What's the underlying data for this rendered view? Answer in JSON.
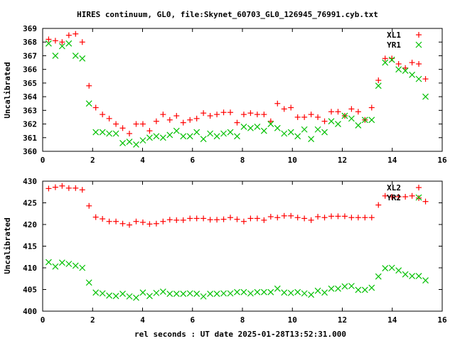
{
  "chart_data": {
    "title": "HIRES continuum, GL0, file:Skynet_60703_GL0_126945_76991.cyb.txt",
    "xlabel": "rel seconds : UT date 2025-01-28T13:52:31.000",
    "x_start": 0.24,
    "x_step": 0.2695,
    "panels": [
      {
        "type": "scatter",
        "ylabel": "Uncalibrated",
        "xlim": [
          0,
          16
        ],
        "ylim": [
          360,
          369
        ],
        "xticks": [
          "0",
          "2",
          "4",
          "6",
          "8",
          "10",
          "12",
          "14",
          "16"
        ],
        "yticks": [
          "360",
          "361",
          "362",
          "363",
          "364",
          "365",
          "366",
          "367",
          "368",
          "369"
        ],
        "legend_position": "top-right",
        "series": [
          {
            "name": "XL1",
            "color": "#ff0000",
            "marker": "plus",
            "values": [
              368.2,
              368.1,
              368.0,
              368.5,
              368.6,
              368.0,
              364.8,
              363.2,
              362.7,
              362.4,
              362.0,
              361.7,
              361.3,
              362.0,
              362.0,
              361.5,
              362.2,
              362.7,
              362.3,
              362.6,
              362.1,
              362.3,
              362.4,
              362.8,
              362.6,
              362.7,
              362.85,
              362.85,
              362.1,
              362.7,
              362.8,
              362.7,
              362.7,
              362.2,
              363.5,
              363.1,
              363.2,
              362.5,
              362.5,
              362.7,
              362.5,
              362.2,
              362.9,
              362.9,
              362.6,
              363.1,
              362.9,
              362.3,
              363.2,
              365.2,
              366.8,
              366.8,
              366.4,
              366.1,
              366.5,
              366.4,
              365.3
            ]
          },
          {
            "name": "YR1",
            "color": "#00c000",
            "marker": "cross",
            "values": [
              367.9,
              367.0,
              367.7,
              367.9,
              367.0,
              366.8,
              363.5,
              361.4,
              361.4,
              361.3,
              361.3,
              360.6,
              360.7,
              360.5,
              360.8,
              361.0,
              361.1,
              361.0,
              361.2,
              361.5,
              361.1,
              361.1,
              361.4,
              360.9,
              361.3,
              361.1,
              361.3,
              361.4,
              361.1,
              361.8,
              361.7,
              361.8,
              361.5,
              362.0,
              361.7,
              361.3,
              361.4,
              361.1,
              361.6,
              360.9,
              361.6,
              361.4,
              362.2,
              362.0,
              362.6,
              362.4,
              361.9,
              362.3,
              362.3,
              364.8,
              366.5,
              366.7,
              366.0,
              365.9,
              365.6,
              365.3,
              364.0
            ]
          }
        ]
      },
      {
        "type": "scatter",
        "ylabel": "Uncalibrated",
        "xlim": [
          0,
          16
        ],
        "ylim": [
          400,
          430
        ],
        "xticks": [
          "0",
          "2",
          "4",
          "6",
          "8",
          "10",
          "12",
          "14",
          "16"
        ],
        "yticks": [
          "400",
          "405",
          "410",
          "415",
          "420",
          "425",
          "430"
        ],
        "legend_position": "top-right",
        "series": [
          {
            "name": "XL2",
            "color": "#ff0000",
            "marker": "plus",
            "values": [
              428.3,
              428.6,
              428.9,
              428.4,
              428.4,
              428.0,
              424.3,
              421.7,
              421.3,
              420.7,
              420.7,
              420.2,
              419.9,
              420.7,
              420.5,
              420.1,
              420.2,
              420.7,
              421.1,
              421.0,
              421.0,
              421.4,
              421.4,
              421.4,
              421.1,
              421.1,
              421.2,
              421.6,
              421.2,
              420.7,
              421.4,
              421.4,
              421.0,
              421.8,
              421.6,
              422.0,
              422.0,
              421.6,
              421.4,
              421.0,
              421.8,
              421.6,
              421.9,
              421.9,
              421.9,
              421.6,
              421.6,
              421.6,
              421.6,
              424.5,
              426.6,
              426.4,
              426.4,
              426.4,
              426.6,
              426.1,
              425.3
            ]
          },
          {
            "name": "YR2",
            "color": "#00c000",
            "marker": "cross",
            "values": [
              411.3,
              410.3,
              411.2,
              410.9,
              410.5,
              410.0,
              406.6,
              404.3,
              404.1,
              403.6,
              403.5,
              404.0,
              403.4,
              403.1,
              404.3,
              403.5,
              404.2,
              404.5,
              404.0,
              404.0,
              404.0,
              404.1,
              404.0,
              403.4,
              404.0,
              404.0,
              404.1,
              404.1,
              404.4,
              404.4,
              404.1,
              404.4,
              404.4,
              404.4,
              405.2,
              404.3,
              404.2,
              404.4,
              404.1,
              403.8,
              404.7,
              404.3,
              405.2,
              405.2,
              405.7,
              405.8,
              404.9,
              404.9,
              405.4,
              408.0,
              409.9,
              410.0,
              409.4,
              408.5,
              408.1,
              408.1,
              407.1
            ]
          }
        ]
      }
    ]
  }
}
